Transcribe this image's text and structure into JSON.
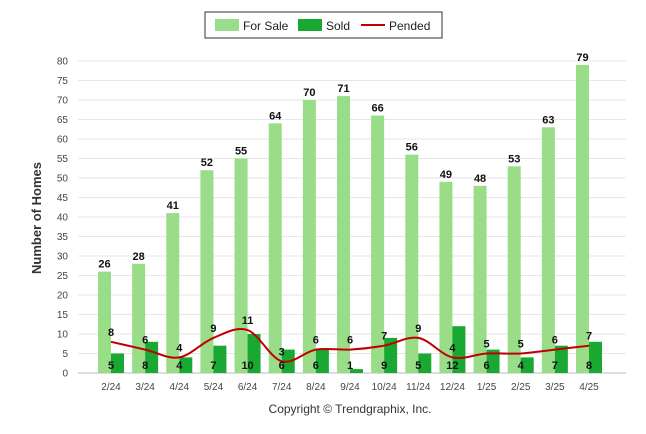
{
  "chart_data": {
    "type": "bar",
    "categories": [
      "2/24",
      "3/24",
      "4/24",
      "5/24",
      "6/24",
      "7/24",
      "8/24",
      "9/24",
      "10/24",
      "11/24",
      "12/24",
      "1/25",
      "2/25",
      "3/25",
      "4/25"
    ],
    "series": [
      {
        "name": "For Sale",
        "type": "bar",
        "color": "#99dd88",
        "values": [
          26,
          28,
          41,
          52,
          55,
          64,
          70,
          71,
          66,
          56,
          49,
          48,
          53,
          63,
          79
        ]
      },
      {
        "name": "Sold",
        "type": "bar",
        "color": "#19a832",
        "values": [
          5,
          8,
          4,
          7,
          10,
          6,
          6,
          1,
          9,
          5,
          12,
          6,
          4,
          7,
          8
        ]
      },
      {
        "name": "Pended",
        "type": "line",
        "color": "#c00000",
        "values": [
          8,
          6,
          4,
          9,
          11,
          3,
          6,
          6,
          7,
          9,
          4,
          5,
          5,
          6,
          7
        ]
      }
    ],
    "ylabel": "Number of Homes",
    "xlabel": "",
    "ylim": [
      0,
      80
    ],
    "yticks": [
      0,
      5,
      10,
      15,
      20,
      25,
      30,
      35,
      40,
      45,
      50,
      55,
      60,
      65,
      70,
      75,
      80
    ],
    "grid": true,
    "legend": "top-center"
  },
  "footer": {
    "copyright": "Copyright © Trendgraphix, Inc."
  }
}
